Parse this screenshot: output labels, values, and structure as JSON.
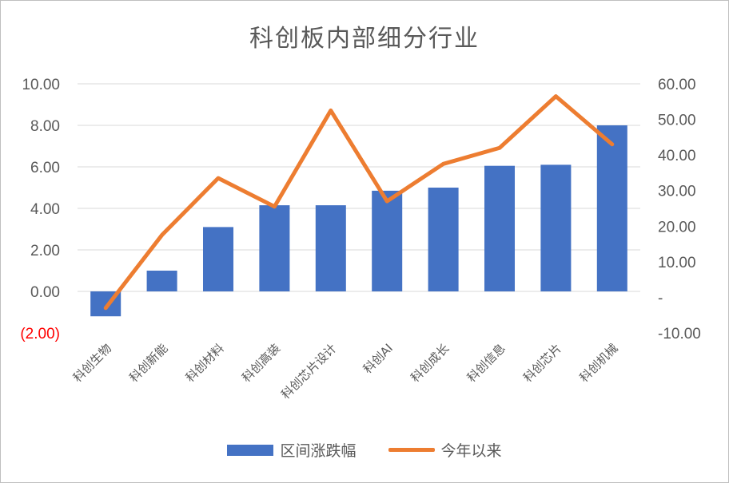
{
  "chart_data": {
    "type": "bar",
    "title": "科创板内部细分行业",
    "categories": [
      "科创生物",
      "科创新能",
      "科创材料",
      "科创高装",
      "科创芯片设计",
      "科创AI",
      "科创成长",
      "科创信息",
      "科创芯片",
      "科创机械"
    ],
    "series": [
      {
        "name": "区间涨跌幅",
        "type": "bar",
        "axis": "left",
        "color": "#4472c4",
        "values": [
          -1.2,
          1.0,
          3.1,
          4.15,
          4.15,
          4.85,
          5.0,
          6.05,
          6.1,
          8.0
        ]
      },
      {
        "name": "今年以来",
        "type": "line",
        "axis": "right",
        "color": "#ed7d31",
        "values": [
          -3.0,
          17.5,
          33.5,
          25.5,
          52.5,
          27.0,
          37.5,
          42.0,
          56.5,
          43.0
        ]
      }
    ],
    "left_axis": {
      "ylim": [
        -2,
        10
      ],
      "ticks": [
        10,
        8,
        6,
        4,
        2,
        0,
        -2
      ],
      "tick_labels": [
        "10.00",
        "8.00",
        "6.00",
        "4.00",
        "2.00",
        "0.00",
        "(2.00)"
      ]
    },
    "right_axis": {
      "ylim": [
        -10,
        60
      ],
      "ticks": [
        60,
        50,
        40,
        30,
        20,
        10,
        0,
        -10
      ],
      "tick_labels": [
        "60.00",
        "50.00",
        "40.00",
        "30.00",
        "20.00",
        "10.00",
        "-",
        "-10.00"
      ]
    },
    "grid": true,
    "legend_position": "bottom"
  }
}
